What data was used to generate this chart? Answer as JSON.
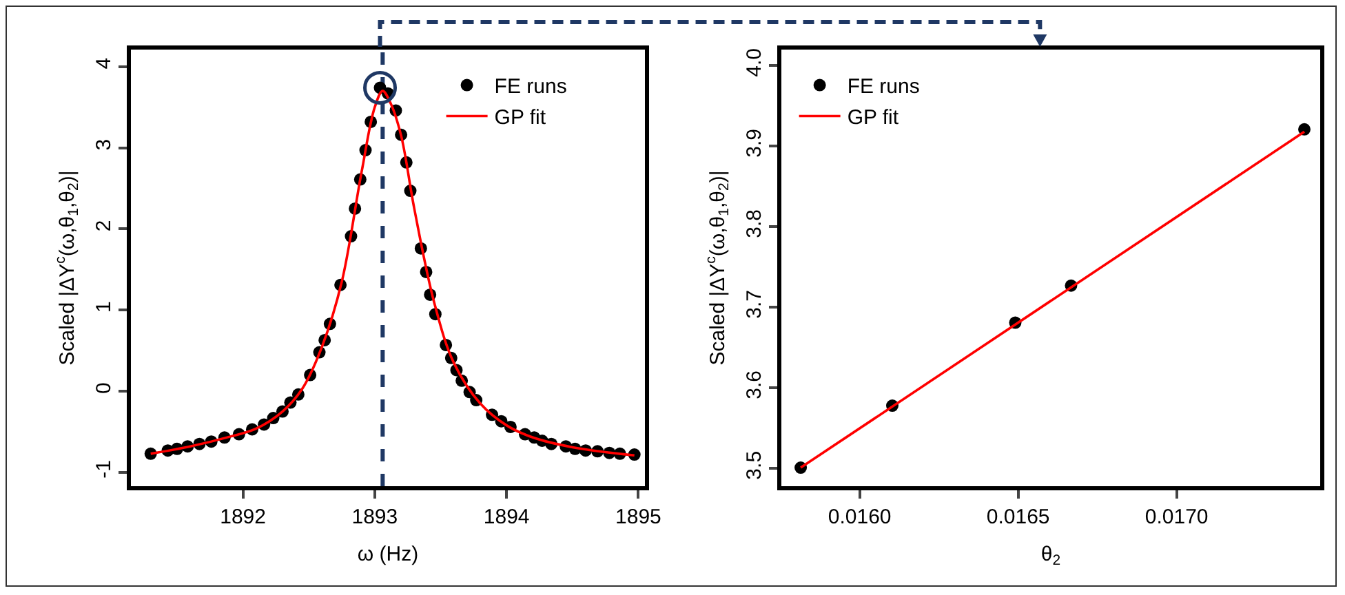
{
  "chart_data": [
    {
      "type": "scatter",
      "xlabel": "ω (Hz)",
      "ylabel": "Scaled |ΔY$^{c}$(ω,θ$_{1}$,θ$_{2}$)|",
      "xlim": [
        1891.15,
        1895.05
      ],
      "ylim": [
        -1.17,
        4.21
      ],
      "xticks": [
        1892,
        1893,
        1894,
        1895
      ],
      "yticks": [
        -1,
        0,
        1,
        2,
        3,
        4
      ],
      "grid": false,
      "legend": "top right",
      "ref_lines": [
        {
          "axis": "x",
          "value": 1893.06,
          "color": "#1f3864",
          "line_style": "dashed"
        }
      ],
      "series": [
        {
          "name": "FE runs",
          "type": "scatter",
          "marker": "circle",
          "color": "#000000",
          "x": [
            1891.3,
            1891.43,
            1891.5,
            1891.58,
            1891.67,
            1891.76,
            1891.86,
            1891.97,
            1892.07,
            1892.16,
            1892.23,
            1892.3,
            1892.36,
            1892.42,
            1892.51,
            1892.58,
            1892.62,
            1892.66,
            1892.74,
            1892.82,
            1892.85,
            1892.89,
            1892.93,
            1892.97,
            1893.04,
            1893.1,
            1893.16,
            1893.2,
            1893.24,
            1893.27,
            1893.35,
            1893.39,
            1893.42,
            1893.46,
            1893.54,
            1893.58,
            1893.62,
            1893.66,
            1893.72,
            1893.77,
            1893.89,
            1893.96,
            1894.03,
            1894.14,
            1894.21,
            1894.27,
            1894.34,
            1894.45,
            1894.52,
            1894.6,
            1894.69,
            1894.78,
            1894.86,
            1894.97
          ],
          "values": [
            -0.77,
            -0.73,
            -0.71,
            -0.68,
            -0.65,
            -0.62,
            -0.57,
            -0.53,
            -0.47,
            -0.41,
            -0.33,
            -0.25,
            -0.14,
            -0.04,
            0.2,
            0.48,
            0.63,
            0.83,
            1.31,
            1.91,
            2.25,
            2.61,
            2.97,
            3.32,
            3.74,
            3.67,
            3.46,
            3.16,
            2.82,
            2.47,
            1.76,
            1.47,
            1.19,
            0.95,
            0.57,
            0.41,
            0.26,
            0.13,
            -0.01,
            -0.11,
            -0.29,
            -0.37,
            -0.44,
            -0.53,
            -0.57,
            -0.61,
            -0.65,
            -0.68,
            -0.71,
            -0.73,
            -0.74,
            -0.76,
            -0.77,
            -0.78
          ]
        },
        {
          "name": "GP fit",
          "type": "line",
          "color": "#ff0000",
          "x": [
            1891.3,
            1891.6,
            1891.9,
            1892.1,
            1892.3,
            1892.45,
            1892.6,
            1892.75,
            1892.9,
            1893.0,
            1893.06,
            1893.12,
            1893.2,
            1893.3,
            1893.45,
            1893.6,
            1893.8,
            1894.0,
            1894.2,
            1894.5,
            1894.97
          ],
          "values": [
            -0.77,
            -0.68,
            -0.56,
            -0.46,
            -0.25,
            0.03,
            0.55,
            1.35,
            2.7,
            3.5,
            3.7,
            3.55,
            3.15,
            2.25,
            1.1,
            0.35,
            -0.15,
            -0.42,
            -0.57,
            -0.69,
            -0.79
          ]
        }
      ]
    },
    {
      "type": "scatter",
      "xlabel": "θ$_{2}$",
      "ylabel": "Scaled |ΔY$^{c}$(ω,θ$_{1}$,θ$_{2}$)|",
      "xlim": [
        0.015753,
        0.017453
      ],
      "ylim": [
        3.478,
        4.02
      ],
      "xticks": [
        {
          "value": 0.016,
          "label": "0.0160"
        },
        {
          "value": 0.0165,
          "label": "0.0165"
        },
        {
          "value": 0.017,
          "label": "0.0170"
        }
      ],
      "yticks": [
        {
          "value": 3.5,
          "label": "3.5"
        },
        {
          "value": 3.6,
          "label": "3.6"
        },
        {
          "value": 3.7,
          "label": "3.7"
        },
        {
          "value": 3.8,
          "label": "3.8"
        },
        {
          "value": 3.9,
          "label": "3.9"
        },
        {
          "value": 4.0,
          "label": "4.0"
        }
      ],
      "grid": false,
      "legend": "top left",
      "series": [
        {
          "name": "FE runs",
          "type": "scatter",
          "marker": "circle",
          "color": "#000000",
          "x": [
            0.015814,
            0.016103,
            0.016491,
            0.016667,
            0.017403
          ],
          "values": [
            3.501,
            3.578,
            3.681,
            3.727,
            3.921
          ]
        },
        {
          "name": "GP fit",
          "type": "line",
          "color": "#ff0000",
          "x": [
            0.015814,
            0.017403
          ],
          "values": [
            3.501,
            3.918
          ]
        }
      ]
    }
  ]
}
